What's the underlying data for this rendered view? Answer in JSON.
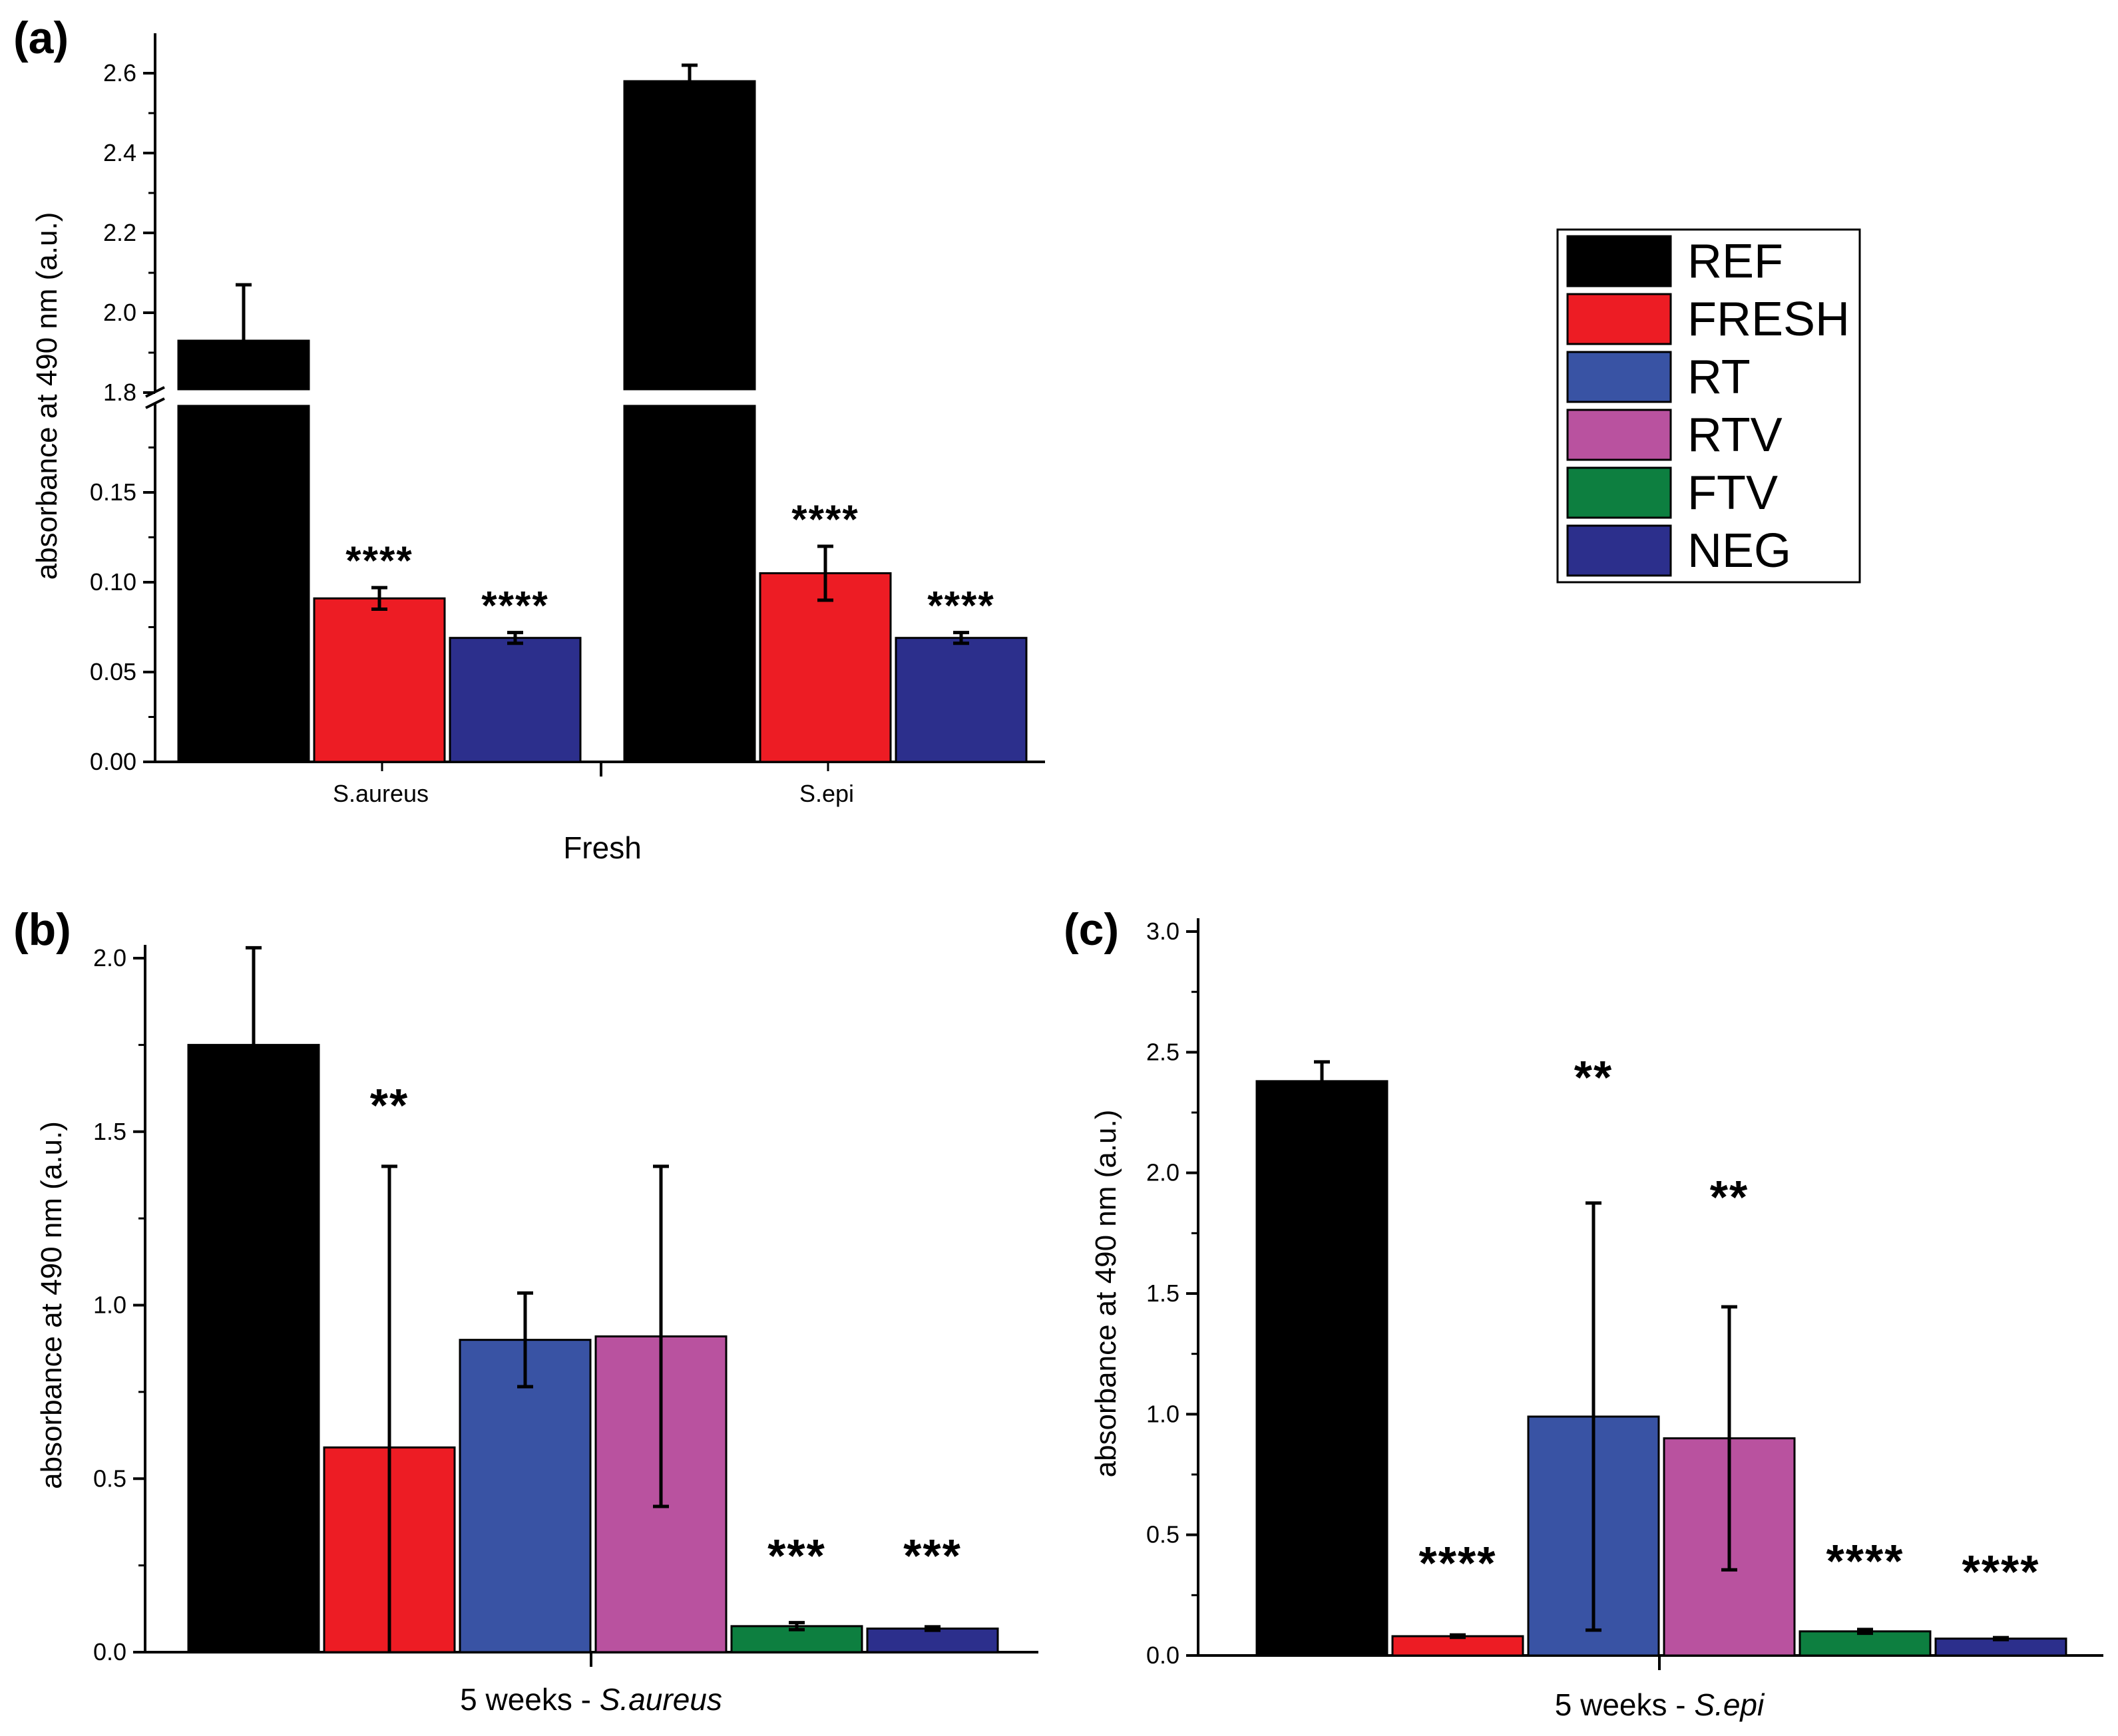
{
  "colors": {
    "REF": "#000000",
    "FRESH": "#ed1c24",
    "RT": "#3953a4",
    "RTV": "#b9529f",
    "FTV": "#0d7f40",
    "NEG": "#2c2f8c"
  },
  "legend": [
    "REF",
    "FRESH",
    "RT",
    "RTV",
    "FTV",
    "NEG"
  ],
  "chart_data": [
    {
      "panel": "(a)",
      "type": "bar",
      "xlabel": "Fresh",
      "ylabel": "absorbance at 490 nm (a.u.)",
      "categories": [
        "S.aureus",
        "S.epi"
      ],
      "broken_axis": true,
      "ylim_lower": [
        0,
        0.2
      ],
      "ylim_upper": [
        1.8,
        2.7
      ],
      "yticks_lower": [
        "0.00",
        "0.05",
        "0.10",
        "0.15"
      ],
      "yticks_upper": [
        "1.8",
        "2.0",
        "2.2",
        "2.4",
        "2.6"
      ],
      "series": [
        {
          "name": "REF",
          "values": [
            1.93,
            2.58
          ],
          "errors": [
            0.14,
            0.04
          ]
        },
        {
          "name": "FRESH",
          "values": [
            0.091,
            0.105
          ],
          "errors": [
            0.006,
            0.015
          ]
        },
        {
          "name": "NEG",
          "values": [
            0.069,
            0.069
          ],
          "errors": [
            0.003,
            0.003
          ]
        }
      ],
      "significance": [
        [
          "",
          "****",
          "****"
        ],
        [
          "",
          "****",
          "****"
        ]
      ]
    },
    {
      "panel": "(b)",
      "type": "bar",
      "xlabel_prefix": "5 weeks - ",
      "xlabel_species": "S.aureus",
      "ylabel": "absorbance at 490 nm (a.u.)",
      "ylim": [
        0,
        2.0
      ],
      "yticks": [
        "0.0",
        "0.5",
        "1.0",
        "1.5",
        "2.0"
      ],
      "series": [
        {
          "name": "REF",
          "value": 1.75,
          "error": 0.28,
          "sig": ""
        },
        {
          "name": "FRESH",
          "value": 0.59,
          "error": 0.81,
          "sig": "**"
        },
        {
          "name": "RT",
          "value": 0.9,
          "error": 0.135,
          "sig": ""
        },
        {
          "name": "RTV",
          "value": 0.91,
          "error": 0.49,
          "sig": ""
        },
        {
          "name": "FTV",
          "value": 0.075,
          "error": 0.01,
          "sig": "***"
        },
        {
          "name": "NEG",
          "value": 0.068,
          "error": 0.005,
          "sig": "***"
        }
      ]
    },
    {
      "panel": "(c)",
      "type": "bar",
      "xlabel_prefix": "5 weeks - ",
      "xlabel_species": "S.epi",
      "ylabel": "absorbance at 490 nm (a.u.)",
      "ylim": [
        0,
        3.0
      ],
      "yticks": [
        "0.0",
        "0.5",
        "1.0",
        "1.5",
        "2.0",
        "2.5",
        "3.0"
      ],
      "series": [
        {
          "name": "REF",
          "value": 2.38,
          "error": 0.08,
          "sig": ""
        },
        {
          "name": "FRESH",
          "value": 0.08,
          "error": 0.005,
          "sig": "****"
        },
        {
          "name": "RT",
          "value": 0.99,
          "error": 0.885,
          "sig": "**"
        },
        {
          "name": "RTV",
          "value": 0.9,
          "error": 0.545,
          "sig": "**"
        },
        {
          "name": "FTV",
          "value": 0.1,
          "error": 0.008,
          "sig": "****"
        },
        {
          "name": "NEG",
          "value": 0.07,
          "error": 0.004,
          "sig": "****"
        }
      ]
    }
  ]
}
